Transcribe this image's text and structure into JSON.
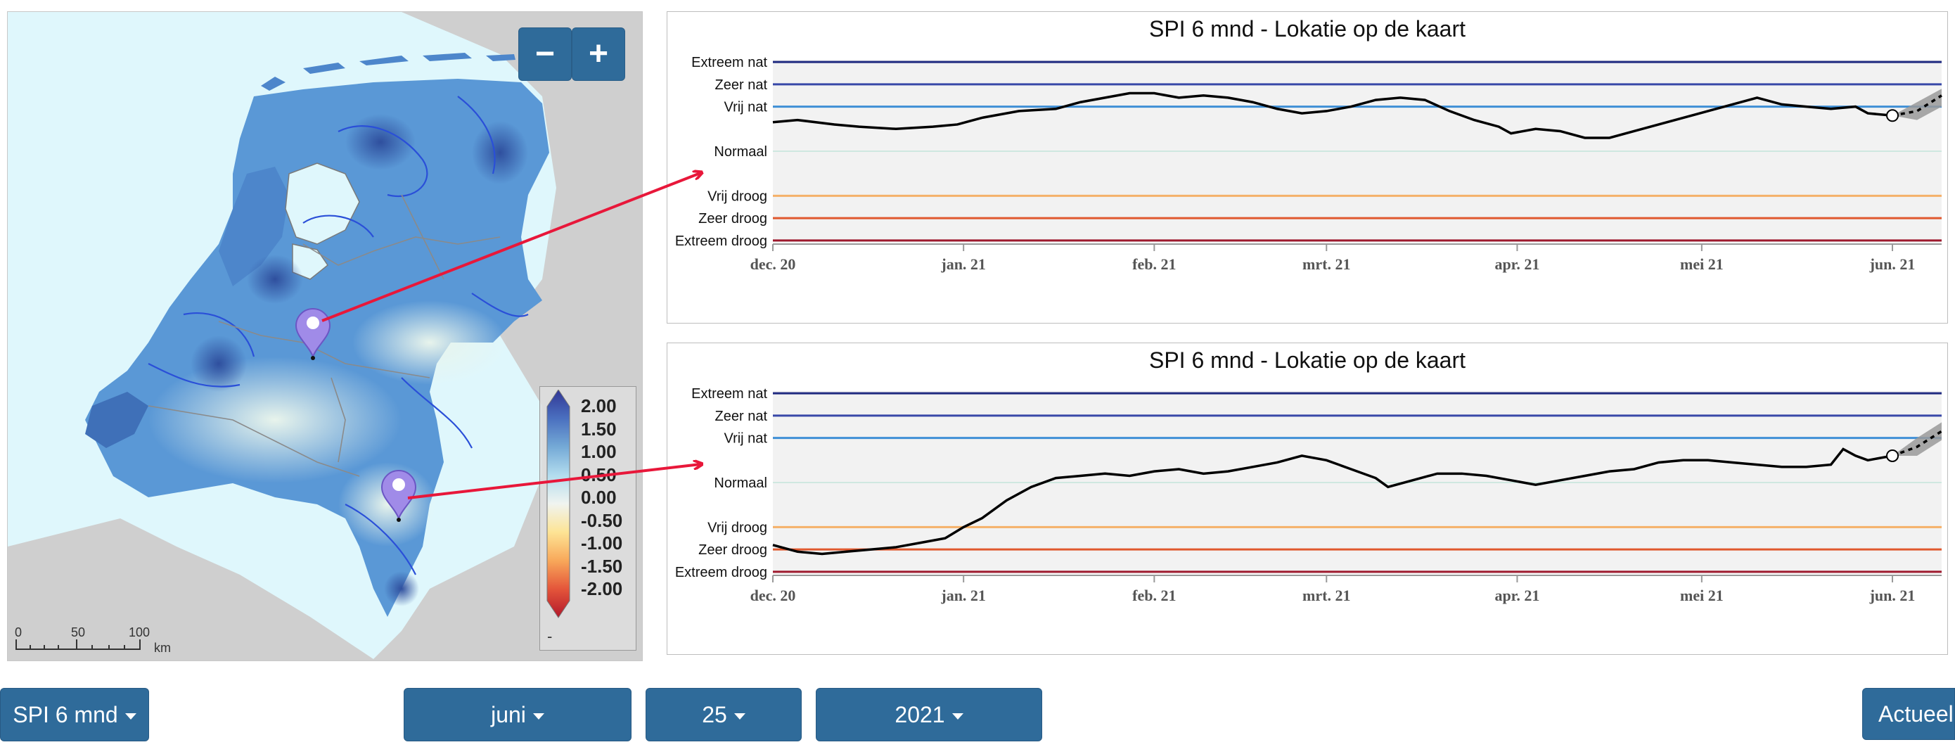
{
  "map": {
    "zoom_out_label": "−",
    "zoom_in_label": "+",
    "legend": {
      "labels": [
        "2.00",
        "1.50",
        "1.00",
        "0.50",
        "0.00",
        "-0.50",
        "-1.00",
        "-1.50",
        "-2.00"
      ],
      "unit": "-",
      "colors": [
        "#313695",
        "#4a6fbf",
        "#74a9d6",
        "#b2dcee",
        "#f0f4f0",
        "#fde495",
        "#f8a85a",
        "#e4553a",
        "#b2182b"
      ]
    },
    "scale": {
      "labels": [
        "0",
        "50",
        "100"
      ],
      "unit": "km"
    },
    "marker_icon": "map-pin-icon"
  },
  "charts": [
    {
      "title": "SPI 6 mnd - Lokatie op de kaart",
      "class_levels": [
        {
          "label": "Extreem nat",
          "value": 2.0,
          "color": "#1f2a80"
        },
        {
          "label": "Zeer nat",
          "value": 1.5,
          "color": "#3848a8"
        },
        {
          "label": "Vrij nat",
          "value": 1.0,
          "color": "#3f8fd6"
        },
        {
          "label": "Normaal",
          "value": 0.0,
          "color": "#cfe8e0"
        },
        {
          "label": "Vrij droog",
          "value": -1.0,
          "color": "#f5b169"
        },
        {
          "label": "Zeer droog",
          "value": -1.5,
          "color": "#e0582e"
        },
        {
          "label": "Extreem droog",
          "value": -2.0,
          "color": "#9e1a2e"
        }
      ],
      "x_ticks": [
        "dec. 20",
        "jan. 21",
        "feb. 21",
        "mrt. 21",
        "apr. 21",
        "mei 21",
        "jun. 21"
      ]
    },
    {
      "title": "SPI 6 mnd - Lokatie op de kaart",
      "class_levels": [
        {
          "label": "Extreem nat",
          "value": 2.0,
          "color": "#1f2a80"
        },
        {
          "label": "Zeer nat",
          "value": 1.5,
          "color": "#3848a8"
        },
        {
          "label": "Vrij nat",
          "value": 1.0,
          "color": "#3f8fd6"
        },
        {
          "label": "Normaal",
          "value": 0.0,
          "color": "#cfe8e0"
        },
        {
          "label": "Vrij droog",
          "value": -1.0,
          "color": "#f5b169"
        },
        {
          "label": "Zeer droog",
          "value": -1.5,
          "color": "#e0582e"
        },
        {
          "label": "Extreem droog",
          "value": -2.0,
          "color": "#9e1a2e"
        }
      ],
      "x_ticks": [
        "dec. 20",
        "jan. 21",
        "feb. 21",
        "mrt. 21",
        "apr. 21",
        "mei 21",
        "jun. 21"
      ]
    }
  ],
  "chart_data": [
    {
      "type": "line",
      "title": "SPI 6 mnd - Lokatie op de kaart",
      "x_unit": "days since 2020-12-01",
      "xlim": [
        0,
        190
      ],
      "ylim": [
        -2.05,
        2.05
      ],
      "x_tick_days": [
        0,
        31,
        62,
        90,
        121,
        151,
        182
      ],
      "series": [
        {
          "name": "observed",
          "points": [
            [
              0,
              0.65
            ],
            [
              4,
              0.7
            ],
            [
              10,
              0.6
            ],
            [
              14,
              0.55
            ],
            [
              20,
              0.5
            ],
            [
              26,
              0.55
            ],
            [
              30,
              0.6
            ],
            [
              34,
              0.75
            ],
            [
              40,
              0.9
            ],
            [
              46,
              0.95
            ],
            [
              50,
              1.1
            ],
            [
              54,
              1.2
            ],
            [
              58,
              1.3
            ],
            [
              62,
              1.3
            ],
            [
              66,
              1.2
            ],
            [
              70,
              1.25
            ],
            [
              74,
              1.2
            ],
            [
              78,
              1.1
            ],
            [
              82,
              0.95
            ],
            [
              86,
              0.85
            ],
            [
              90,
              0.9
            ],
            [
              94,
              1.0
            ],
            [
              98,
              1.15
            ],
            [
              102,
              1.2
            ],
            [
              106,
              1.15
            ],
            [
              110,
              0.9
            ],
            [
              114,
              0.7
            ],
            [
              118,
              0.55
            ],
            [
              120,
              0.4
            ],
            [
              124,
              0.5
            ],
            [
              128,
              0.45
            ],
            [
              132,
              0.3
            ],
            [
              136,
              0.3
            ],
            [
              140,
              0.45
            ],
            [
              144,
              0.6
            ],
            [
              148,
              0.75
            ],
            [
              152,
              0.9
            ],
            [
              156,
              1.05
            ],
            [
              160,
              1.2
            ],
            [
              164,
              1.05
            ],
            [
              168,
              1.0
            ],
            [
              172,
              0.95
            ],
            [
              176,
              1.0
            ],
            [
              178,
              0.85
            ],
            [
              182,
              0.8
            ]
          ]
        },
        {
          "name": "forecast",
          "points": [
            [
              182,
              0.8
            ],
            [
              186,
              0.9
            ],
            [
              190,
              1.25
            ]
          ],
          "band": [
            [
              182,
              0.8,
              0.8
            ],
            [
              186,
              0.7,
              1.1
            ],
            [
              190,
              1.0,
              1.4
            ]
          ]
        }
      ]
    },
    {
      "type": "line",
      "title": "SPI 6 mnd - Lokatie op de kaart",
      "x_unit": "days since 2020-12-01",
      "xlim": [
        0,
        190
      ],
      "ylim": [
        -2.05,
        2.05
      ],
      "x_tick_days": [
        0,
        31,
        62,
        90,
        121,
        151,
        182
      ],
      "series": [
        {
          "name": "observed",
          "points": [
            [
              0,
              -1.4
            ],
            [
              4,
              -1.55
            ],
            [
              8,
              -1.6
            ],
            [
              12,
              -1.55
            ],
            [
              16,
              -1.5
            ],
            [
              20,
              -1.45
            ],
            [
              24,
              -1.35
            ],
            [
              28,
              -1.25
            ],
            [
              31,
              -1.0
            ],
            [
              34,
              -0.8
            ],
            [
              38,
              -0.4
            ],
            [
              42,
              -0.1
            ],
            [
              46,
              0.1
            ],
            [
              50,
              0.15
            ],
            [
              54,
              0.2
            ],
            [
              58,
              0.15
            ],
            [
              62,
              0.25
            ],
            [
              66,
              0.3
            ],
            [
              70,
              0.2
            ],
            [
              74,
              0.25
            ],
            [
              78,
              0.35
            ],
            [
              82,
              0.45
            ],
            [
              86,
              0.6
            ],
            [
              90,
              0.5
            ],
            [
              94,
              0.3
            ],
            [
              98,
              0.1
            ],
            [
              100,
              -0.1
            ],
            [
              104,
              0.05
            ],
            [
              108,
              0.2
            ],
            [
              112,
              0.2
            ],
            [
              116,
              0.15
            ],
            [
              120,
              0.05
            ],
            [
              124,
              -0.05
            ],
            [
              128,
              0.05
            ],
            [
              132,
              0.15
            ],
            [
              136,
              0.25
            ],
            [
              140,
              0.3
            ],
            [
              144,
              0.45
            ],
            [
              148,
              0.5
            ],
            [
              152,
              0.5
            ],
            [
              156,
              0.45
            ],
            [
              160,
              0.4
            ],
            [
              164,
              0.35
            ],
            [
              168,
              0.35
            ],
            [
              172,
              0.4
            ],
            [
              174,
              0.75
            ],
            [
              176,
              0.6
            ],
            [
              178,
              0.5
            ],
            [
              182,
              0.6
            ]
          ]
        },
        {
          "name": "forecast",
          "points": [
            [
              182,
              0.6
            ],
            [
              186,
              0.8
            ],
            [
              190,
              1.15
            ]
          ],
          "band": [
            [
              182,
              0.6,
              0.6
            ],
            [
              186,
              0.6,
              1.0
            ],
            [
              190,
              0.95,
              1.35
            ]
          ]
        }
      ]
    }
  ],
  "controls": {
    "index_label": "SPI 6 mnd",
    "month_label": "juni",
    "day_label": "25",
    "year_label": "2021",
    "current_label": "Actueel"
  }
}
